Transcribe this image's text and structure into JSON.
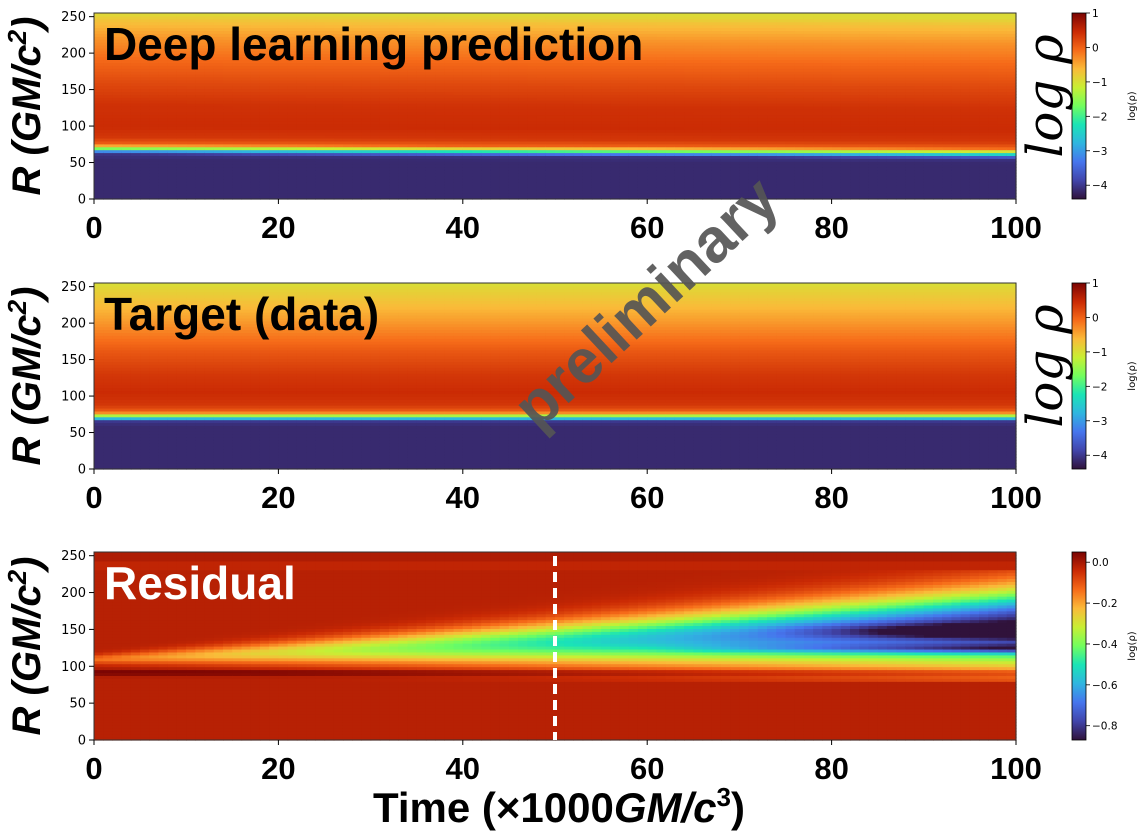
{
  "chart_data": [
    {
      "type": "heatmap",
      "title": "Deep learning prediction",
      "ylabel": "R (GM/c²)",
      "xlabel": "",
      "xlim": [
        0,
        100
      ],
      "ylim": [
        0,
        255
      ],
      "xticks": [
        "0",
        "20",
        "40",
        "60",
        "80",
        "100"
      ],
      "yticks": [
        "0",
        "50",
        "100",
        "150",
        "200",
        "250"
      ],
      "colormap": "turbo",
      "colorbar": {
        "range": [
          -4.4,
          1.0
        ],
        "ticks": [
          "1",
          "0",
          "−1",
          "−2",
          "−3",
          "−4"
        ],
        "label": "log(ρ)",
        "big_label": "log ρ"
      },
      "profile": [
        {
          "r": 0,
          "v": -4.15
        },
        {
          "r": 55,
          "v": -4.15
        },
        {
          "r": 62,
          "v": -4.05
        },
        {
          "r": 66,
          "v": -3.1
        },
        {
          "r": 69,
          "v": -1.9
        },
        {
          "r": 72,
          "v": -0.9
        },
        {
          "r": 76,
          "v": 0.0
        },
        {
          "r": 85,
          "v": 0.35
        },
        {
          "r": 100,
          "v": 0.45
        },
        {
          "r": 130,
          "v": 0.4
        },
        {
          "r": 160,
          "v": 0.2
        },
        {
          "r": 190,
          "v": -0.05
        },
        {
          "r": 220,
          "v": -0.35
        },
        {
          "r": 245,
          "v": -0.7
        },
        {
          "r": 255,
          "v": -0.95
        }
      ],
      "edge_start": 68,
      "edge_end": 62
    },
    {
      "type": "heatmap",
      "title": "Target (data)",
      "ylabel": "R (GM/c²)",
      "xlabel": "",
      "xlim": [
        0,
        100
      ],
      "ylim": [
        0,
        255
      ],
      "xticks": [
        "0",
        "20",
        "40",
        "60",
        "80",
        "100"
      ],
      "yticks": [
        "0",
        "50",
        "100",
        "150",
        "200",
        "250"
      ],
      "colormap": "turbo",
      "colorbar": {
        "range": [
          -4.4,
          1.0
        ],
        "ticks": [
          "1",
          "0",
          "−1",
          "−2",
          "−3",
          "−4"
        ],
        "label": "log(ρ)",
        "big_label": "log ρ"
      },
      "profile": [
        {
          "r": 0,
          "v": -4.15
        },
        {
          "r": 60,
          "v": -4.15
        },
        {
          "r": 66,
          "v": -4.0
        },
        {
          "r": 69,
          "v": -3.0
        },
        {
          "r": 72,
          "v": -1.9
        },
        {
          "r": 75,
          "v": -0.9
        },
        {
          "r": 79,
          "v": 0.0
        },
        {
          "r": 88,
          "v": 0.35
        },
        {
          "r": 105,
          "v": 0.45
        },
        {
          "r": 130,
          "v": 0.35
        },
        {
          "r": 160,
          "v": 0.1
        },
        {
          "r": 190,
          "v": -0.25
        },
        {
          "r": 220,
          "v": -0.6
        },
        {
          "r": 245,
          "v": -0.85
        },
        {
          "r": 255,
          "v": -1.0
        }
      ],
      "edge_start": 68,
      "edge_end": 68
    },
    {
      "type": "heatmap",
      "title": "Residual",
      "ylabel": "R (GM/c²)",
      "xlabel": "Time (×1000GM/c³)",
      "xlim": [
        0,
        100
      ],
      "ylim": [
        0,
        255
      ],
      "xticks": [
        "0",
        "20",
        "40",
        "60",
        "80",
        "100"
      ],
      "yticks": [
        "0",
        "50",
        "100",
        "150",
        "200",
        "250"
      ],
      "colormap": "turbo",
      "colorbar": {
        "range": [
          -0.87,
          0.05
        ],
        "ticks": [
          "0.0",
          "−0.2",
          "−0.4",
          "−0.6",
          "−0.8"
        ],
        "label": "log(ρ)"
      },
      "vline_x": 50
    }
  ],
  "watermark": "preliminary"
}
